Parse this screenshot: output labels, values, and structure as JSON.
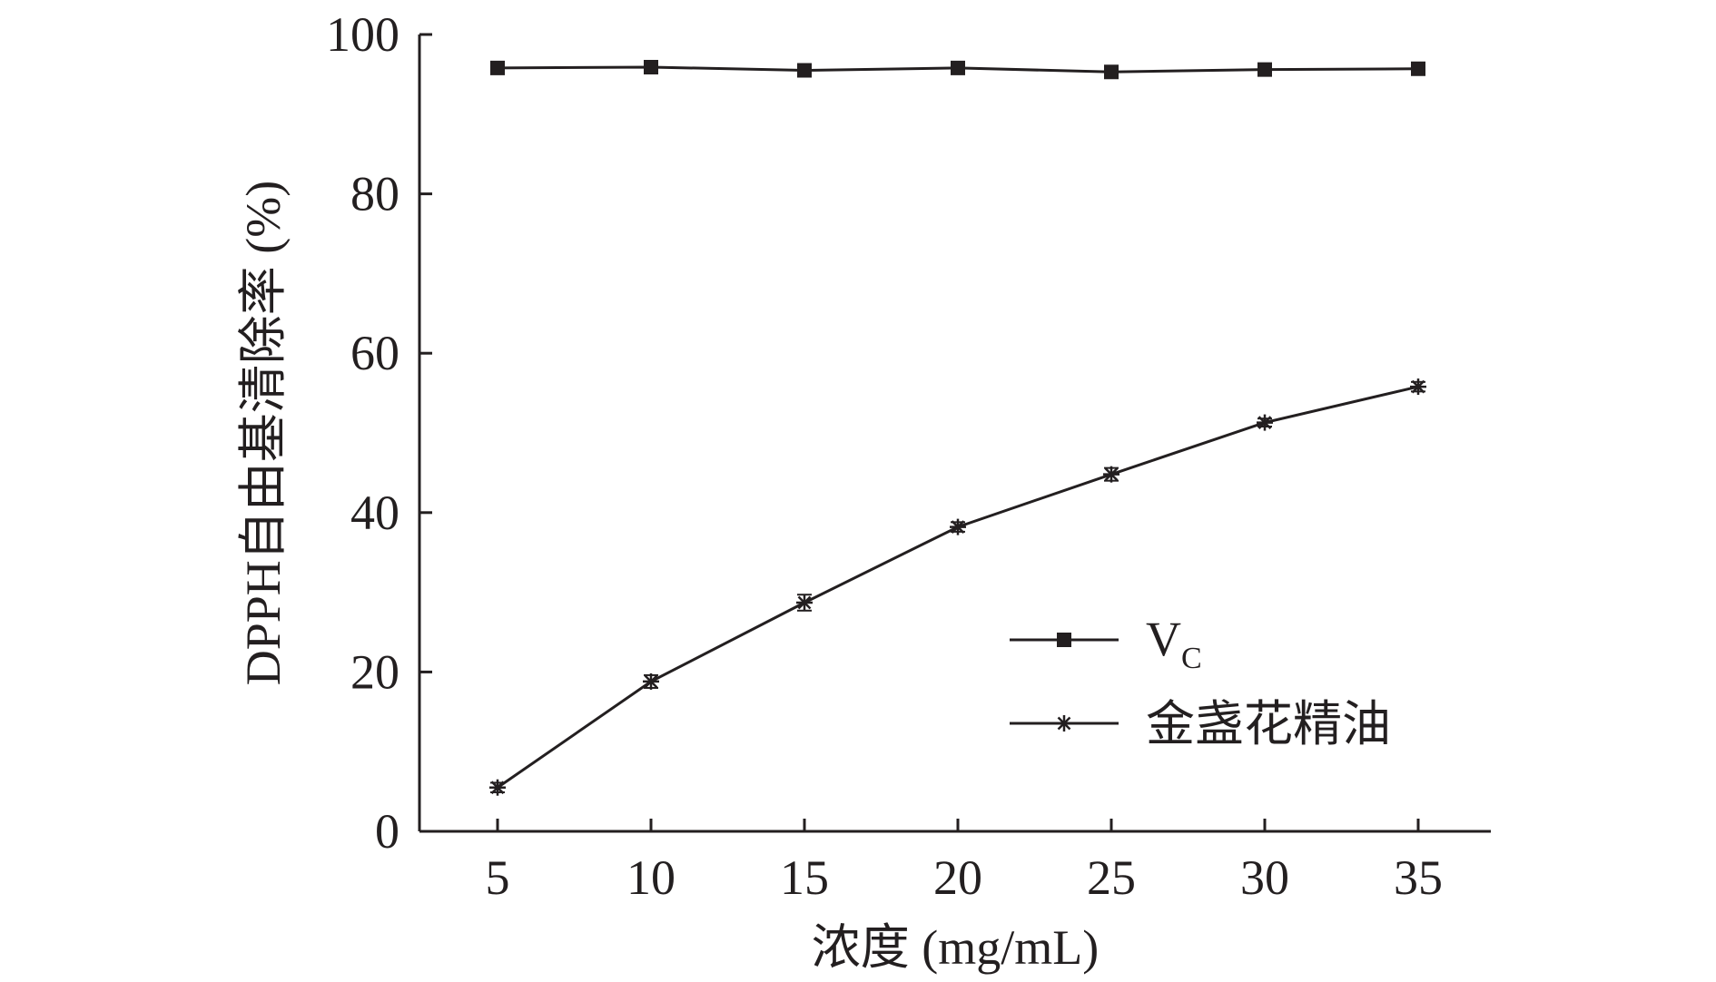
{
  "chart_data": {
    "type": "line",
    "title": "",
    "xlabel": "浓度 (mg/mL)",
    "ylabel": "DPPH自由基清除率 (%)",
    "x": [
      5,
      10,
      15,
      20,
      25,
      30,
      35
    ],
    "x_tick_labels": [
      "5",
      "10",
      "15",
      "20",
      "25",
      "30",
      "35"
    ],
    "y_tick_labels": [
      "0",
      "20",
      "40",
      "60",
      "80",
      "100"
    ],
    "y_ticks": [
      0,
      20,
      40,
      60,
      80,
      100
    ],
    "ylim": [
      0,
      100
    ],
    "grid": false,
    "legend_position": "bottom-right",
    "series": [
      {
        "name_main": "V",
        "name_sub": "C",
        "marker": "square",
        "values": [
          95.8,
          95.9,
          95.5,
          95.8,
          95.3,
          95.6,
          95.7
        ],
        "errors": [
          0.3,
          0.3,
          0.4,
          0.3,
          0.4,
          0.3,
          0.3
        ]
      },
      {
        "name": "金盏花精油",
        "marker": "star",
        "values": [
          5.5,
          18.8,
          28.7,
          38.2,
          44.8,
          51.3,
          55.8
        ],
        "errors": [
          0.6,
          0.8,
          1.0,
          0.6,
          0.8,
          0.5,
          0.6
        ]
      }
    ],
    "color": "#231f20"
  }
}
